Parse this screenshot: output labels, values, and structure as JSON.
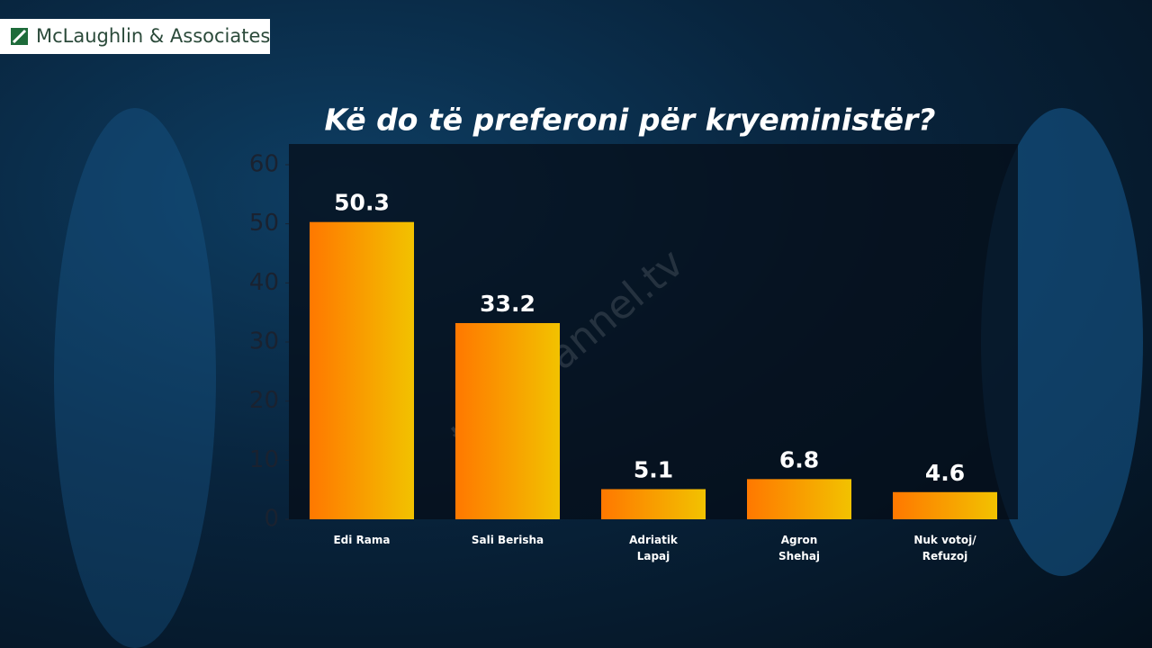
{
  "logo": "McLaughlin & Associates",
  "watermark": "top-channel.tv",
  "chart_data": {
    "type": "bar",
    "title": "Kë do të preferoni për kryeministër?",
    "categories": [
      "Edi Rama",
      "Sali Berisha",
      "Adriatik Lapaj",
      "Agron Shehaj",
      "Nuk votoj/ Refuzoj"
    ],
    "values": [
      50.3,
      33.2,
      5.1,
      6.8,
      4.6
    ],
    "colors": [
      "#ff7800",
      "#f2c200"
    ],
    "ylim": [
      0,
      60
    ],
    "yticks": [
      0,
      10,
      20,
      30,
      40,
      50,
      60
    ]
  }
}
